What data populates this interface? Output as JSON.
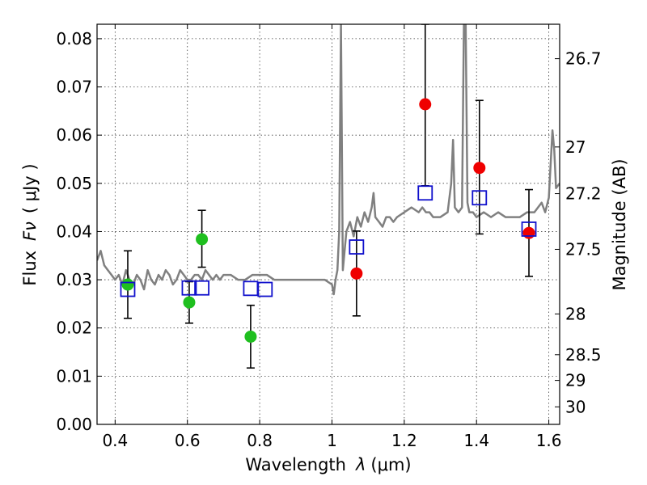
{
  "chart_data": {
    "type": "scatter",
    "xlabel": "Wavelength",
    "xlabel_symbol": "λ",
    "xlabel_unit": "(μm)",
    "ylabel": "Flux",
    "ylabel_symbol": "Fν",
    "ylabel_unit": "( μJy )",
    "y2label": "Magnitude (AB)",
    "xlim": [
      0.35,
      1.63
    ],
    "ylim": [
      0.0,
      0.083
    ],
    "grid": true,
    "x_ticks": [
      {
        "value": 0.4,
        "label": "0.4"
      },
      {
        "value": 0.6,
        "label": "0.6"
      },
      {
        "value": 0.8,
        "label": "0.8"
      },
      {
        "value": 1.0,
        "label": "1"
      },
      {
        "value": 1.2,
        "label": "1.2"
      },
      {
        "value": 1.4,
        "label": "1.4"
      },
      {
        "value": 1.6,
        "label": "1.6"
      }
    ],
    "y_ticks": [
      {
        "value": 0.0,
        "label": "0.00"
      },
      {
        "value": 0.01,
        "label": "0.01"
      },
      {
        "value": 0.02,
        "label": "0.02"
      },
      {
        "value": 0.03,
        "label": "0.03"
      },
      {
        "value": 0.04,
        "label": "0.04"
      },
      {
        "value": 0.05,
        "label": "0.05"
      },
      {
        "value": 0.06,
        "label": "0.06"
      },
      {
        "value": 0.07,
        "label": "0.07"
      },
      {
        "value": 0.08,
        "label": "0.08"
      }
    ],
    "y2_ticks": [
      {
        "value": 26.7,
        "label": "26.7"
      },
      {
        "value": 27.0,
        "label": "27"
      },
      {
        "value": 27.2,
        "label": "27.2"
      },
      {
        "value": 27.5,
        "label": "27.5"
      },
      {
        "value": 28.0,
        "label": "28"
      },
      {
        "value": 28.5,
        "label": "28.5"
      },
      {
        "value": 29.0,
        "label": "29"
      },
      {
        "value": 30.0,
        "label": "30"
      }
    ],
    "spectrum": {
      "color": "#808080",
      "x": [
        0.35,
        0.36,
        0.37,
        0.38,
        0.39,
        0.4,
        0.41,
        0.42,
        0.43,
        0.44,
        0.45,
        0.46,
        0.47,
        0.48,
        0.49,
        0.5,
        0.51,
        0.52,
        0.53,
        0.54,
        0.55,
        0.56,
        0.57,
        0.58,
        0.59,
        0.6,
        0.61,
        0.62,
        0.63,
        0.64,
        0.65,
        0.66,
        0.67,
        0.68,
        0.69,
        0.7,
        0.72,
        0.74,
        0.76,
        0.78,
        0.8,
        0.82,
        0.84,
        0.86,
        0.88,
        0.9,
        0.92,
        0.94,
        0.96,
        0.98,
        1.0,
        1.005,
        1.01,
        1.015,
        1.02,
        1.025,
        1.03,
        1.04,
        1.05,
        1.06,
        1.07,
        1.08,
        1.09,
        1.1,
        1.11,
        1.115,
        1.12,
        1.13,
        1.14,
        1.15,
        1.16,
        1.17,
        1.18,
        1.2,
        1.22,
        1.24,
        1.25,
        1.26,
        1.27,
        1.28,
        1.3,
        1.32,
        1.33,
        1.335,
        1.34,
        1.35,
        1.36,
        1.365,
        1.37,
        1.375,
        1.38,
        1.39,
        1.4,
        1.42,
        1.44,
        1.46,
        1.48,
        1.5,
        1.52,
        1.54,
        1.56,
        1.58,
        1.59,
        1.6,
        1.61,
        1.615,
        1.62,
        1.63
      ],
      "y": [
        0.034,
        0.036,
        0.033,
        0.032,
        0.031,
        0.03,
        0.031,
        0.029,
        0.032,
        0.03,
        0.029,
        0.031,
        0.03,
        0.028,
        0.032,
        0.03,
        0.029,
        0.031,
        0.03,
        0.032,
        0.031,
        0.029,
        0.03,
        0.032,
        0.031,
        0.03,
        0.03,
        0.031,
        0.031,
        0.03,
        0.032,
        0.031,
        0.03,
        0.031,
        0.03,
        0.031,
        0.031,
        0.03,
        0.03,
        0.031,
        0.031,
        0.031,
        0.03,
        0.03,
        0.03,
        0.03,
        0.03,
        0.03,
        0.03,
        0.03,
        0.029,
        0.027,
        0.03,
        0.032,
        0.04,
        0.083,
        0.032,
        0.04,
        0.042,
        0.039,
        0.043,
        0.041,
        0.044,
        0.042,
        0.045,
        0.048,
        0.043,
        0.042,
        0.041,
        0.043,
        0.043,
        0.042,
        0.043,
        0.044,
        0.045,
        0.044,
        0.045,
        0.044,
        0.044,
        0.043,
        0.043,
        0.044,
        0.05,
        0.059,
        0.045,
        0.044,
        0.045,
        0.083,
        0.083,
        0.046,
        0.044,
        0.044,
        0.043,
        0.044,
        0.043,
        0.044,
        0.043,
        0.043,
        0.043,
        0.044,
        0.044,
        0.046,
        0.044,
        0.047,
        0.061,
        0.057,
        0.049,
        0.05
      ]
    },
    "series": [
      {
        "marker": "circle",
        "color": "#1fbf1f",
        "points": [
          {
            "x": 0.435,
            "y": 0.029,
            "yerr": [
              0.007,
              0.007
            ]
          },
          {
            "x": 0.605,
            "y": 0.0253,
            "yerr": [
              0.0043,
              0.0043
            ]
          },
          {
            "x": 0.64,
            "y": 0.0384,
            "yerr": [
              0.0058,
              0.006
            ]
          },
          {
            "x": 0.775,
            "y": 0.0182,
            "yerr": [
              0.0065,
              0.0065
            ]
          }
        ]
      },
      {
        "marker": "circle",
        "color": "#ef0000",
        "points": [
          {
            "x": 1.068,
            "y": 0.0313,
            "yerr": [
              0.0088,
              0.0088
            ]
          },
          {
            "x": 1.258,
            "y": 0.0664,
            "yerr": [
              0.0169,
              0.0166
            ]
          },
          {
            "x": 1.408,
            "y": 0.0532,
            "yerr": [
              0.0137,
              0.014
            ]
          },
          {
            "x": 1.545,
            "y": 0.0397,
            "yerr": [
              0.009,
              0.009
            ]
          }
        ]
      },
      {
        "marker": "square",
        "color": "#1010cc",
        "points": [
          {
            "x": 0.435,
            "y": 0.028
          },
          {
            "x": 0.605,
            "y": 0.0283
          },
          {
            "x": 0.64,
            "y": 0.0283
          },
          {
            "x": 0.775,
            "y": 0.0282
          },
          {
            "x": 0.815,
            "y": 0.028
          },
          {
            "x": 1.068,
            "y": 0.0368
          },
          {
            "x": 1.258,
            "y": 0.048
          },
          {
            "x": 1.408,
            "y": 0.047
          },
          {
            "x": 1.545,
            "y": 0.0405
          }
        ]
      }
    ]
  }
}
